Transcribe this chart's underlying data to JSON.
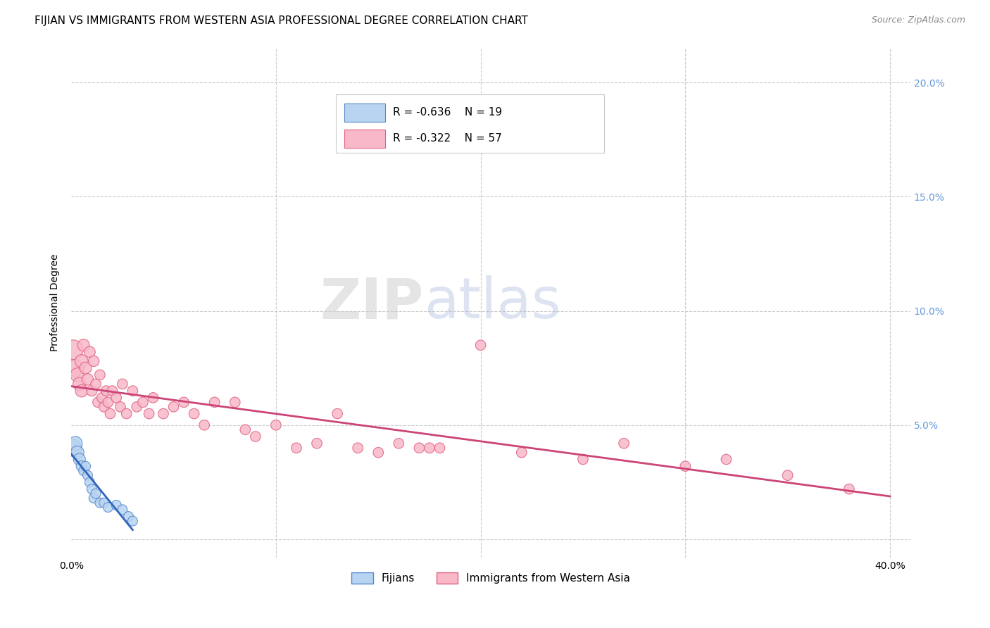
{
  "title": "FIJIAN VS IMMIGRANTS FROM WESTERN ASIA PROFESSIONAL DEGREE CORRELATION CHART",
  "source": "Source: ZipAtlas.com",
  "ylabel": "Professional Degree",
  "xlim": [
    0.0,
    0.41
  ],
  "ylim": [
    -0.008,
    0.215
  ],
  "fijian_R": -0.636,
  "fijian_N": 19,
  "western_asia_R": -0.322,
  "western_asia_N": 57,
  "fijian_color": "#b8d4f0",
  "western_asia_color": "#f8b8c8",
  "fijian_edge_color": "#5588cc",
  "western_asia_edge_color": "#e06080",
  "fijian_line_color": "#3366bb",
  "western_asia_line_color": "#cc4477",
  "background_color": "#ffffff",
  "grid_color": "#cccccc",
  "right_tick_color": "#6699dd",
  "legend_fijian": "Fijians",
  "legend_western_asia": "Immigrants from Western Asia",
  "fijian_x": [
    0.001,
    0.002,
    0.003,
    0.004,
    0.005,
    0.006,
    0.007,
    0.008,
    0.009,
    0.01,
    0.011,
    0.012,
    0.014,
    0.016,
    0.018,
    0.022,
    0.025,
    0.028,
    0.03
  ],
  "fijian_y": [
    0.04,
    0.042,
    0.038,
    0.035,
    0.032,
    0.03,
    0.032,
    0.028,
    0.025,
    0.022,
    0.018,
    0.02,
    0.016,
    0.016,
    0.014,
    0.015,
    0.013,
    0.01,
    0.008
  ],
  "fijian_size": [
    300,
    200,
    180,
    150,
    120,
    100,
    100,
    100,
    100,
    100,
    100,
    100,
    100,
    100,
    100,
    100,
    100,
    100,
    100
  ],
  "western_asia_x": [
    0.001,
    0.002,
    0.003,
    0.004,
    0.005,
    0.005,
    0.006,
    0.007,
    0.008,
    0.009,
    0.01,
    0.011,
    0.012,
    0.013,
    0.014,
    0.015,
    0.016,
    0.017,
    0.018,
    0.019,
    0.02,
    0.022,
    0.024,
    0.025,
    0.027,
    0.03,
    0.032,
    0.035,
    0.038,
    0.04,
    0.045,
    0.05,
    0.055,
    0.06,
    0.065,
    0.07,
    0.08,
    0.085,
    0.09,
    0.1,
    0.11,
    0.12,
    0.13,
    0.14,
    0.15,
    0.16,
    0.17,
    0.175,
    0.18,
    0.2,
    0.22,
    0.25,
    0.27,
    0.3,
    0.32,
    0.35,
    0.38
  ],
  "western_asia_y": [
    0.083,
    0.075,
    0.072,
    0.068,
    0.078,
    0.065,
    0.085,
    0.075,
    0.07,
    0.082,
    0.065,
    0.078,
    0.068,
    0.06,
    0.072,
    0.062,
    0.058,
    0.065,
    0.06,
    0.055,
    0.065,
    0.062,
    0.058,
    0.068,
    0.055,
    0.065,
    0.058,
    0.06,
    0.055,
    0.062,
    0.055,
    0.058,
    0.06,
    0.055,
    0.05,
    0.06,
    0.06,
    0.048,
    0.045,
    0.05,
    0.04,
    0.042,
    0.055,
    0.04,
    0.038,
    0.042,
    0.04,
    0.04,
    0.04,
    0.085,
    0.038,
    0.035,
    0.042,
    0.032,
    0.035,
    0.028,
    0.022
  ],
  "western_asia_size": [
    400,
    300,
    200,
    180,
    180,
    160,
    150,
    150,
    140,
    130,
    120,
    120,
    110,
    110,
    110,
    110,
    110,
    110,
    110,
    110,
    110,
    110,
    110,
    110,
    110,
    110,
    110,
    110,
    110,
    110,
    110,
    110,
    110,
    110,
    110,
    110,
    110,
    110,
    110,
    110,
    110,
    110,
    110,
    110,
    110,
    110,
    110,
    110,
    110,
    110,
    110,
    110,
    110,
    110,
    110,
    110,
    110
  ],
  "title_fontsize": 11,
  "axis_label_fontsize": 10,
  "tick_fontsize": 10
}
